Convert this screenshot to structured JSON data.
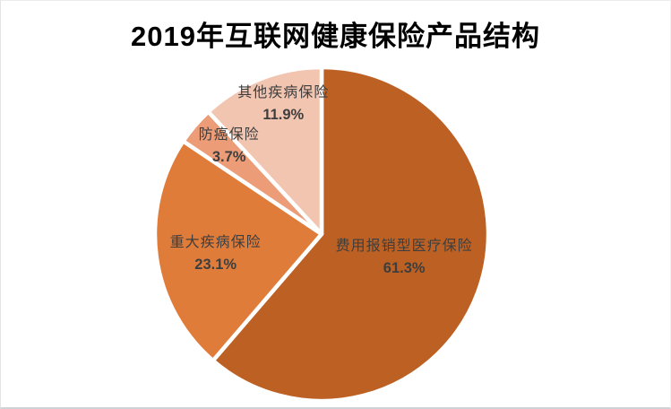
{
  "title": "2019年互联网健康保险产品结构",
  "chart_data": {
    "type": "pie",
    "title": "2019年互联网健康保险产品结构",
    "start_angle_deg": 0,
    "direction": "clockwise",
    "legend_position": "none",
    "data_label_style": "category name and percent, inside slice",
    "slices": [
      {
        "label": "费用报销型医疗保险",
        "value_pct": 61.3,
        "value_label": "61.3%",
        "color": "#BC6123"
      },
      {
        "label": "重大疾病保险",
        "value_pct": 23.1,
        "value_label": "23.1%",
        "color": "#E07C3A"
      },
      {
        "label": "防癌保险",
        "value_pct": 3.7,
        "value_label": "3.7%",
        "color": "#EC9C77"
      },
      {
        "label": "其他疾病保险",
        "value_pct": 11.9,
        "value_label": "11.9%",
        "color": "#F2C5B1"
      }
    ],
    "separator_color": "#FFFFFF",
    "label_text_color": "#3E3E3E",
    "title_color": "#000000",
    "background_color": "#FFFFFF"
  }
}
